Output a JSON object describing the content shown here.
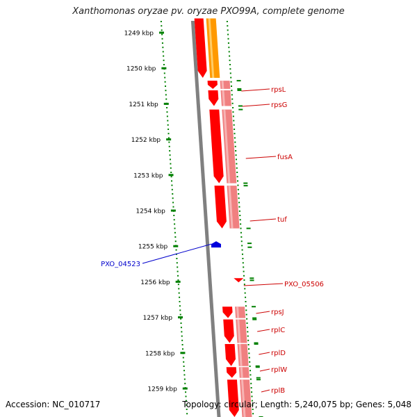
{
  "title": "Xanthomonas oryzae pv. oryzae PXO99A, complete genome",
  "footer": {
    "accession": "Accession: NC_010717",
    "summary": "Topology: circular; Length: 5,240,075 bp; Genes: 5,048"
  },
  "colors": {
    "ruler": "#008000",
    "backbone": "#808080",
    "gene_forward": "#ff0000",
    "gene_light": "#f08080",
    "gene_orange": "#ff9900",
    "gene_blue": "#0000dd",
    "label_red": "#cc0000",
    "label_blue": "#0000cc"
  },
  "ruler": {
    "unit": "kbp",
    "ticks": [
      {
        "label": "1249 kbp",
        "kbp": 1249
      },
      {
        "label": "1250 kbp",
        "kbp": 1250
      },
      {
        "label": "1251 kbp",
        "kbp": 1251
      },
      {
        "label": "1252 kbp",
        "kbp": 1252
      },
      {
        "label": "1253 kbp",
        "kbp": 1253
      },
      {
        "label": "1254 kbp",
        "kbp": 1254
      },
      {
        "label": "1255 kbp",
        "kbp": 1255
      },
      {
        "label": "1256 kbp",
        "kbp": 1256
      },
      {
        "label": "1257 kbp",
        "kbp": 1257
      },
      {
        "label": "1258 kbp",
        "kbp": 1258
      },
      {
        "label": "1259 kbp",
        "kbp": 1259
      }
    ]
  },
  "genes": [
    {
      "name": "rpsL",
      "start": 1250.35,
      "end": 1250.58,
      "strand": "+"
    },
    {
      "name": "rpsG",
      "start": 1250.62,
      "end": 1251.06,
      "strand": "+"
    },
    {
      "name": "fusA",
      "start": 1251.16,
      "end": 1253.23,
      "strand": "+"
    },
    {
      "name": "tuf",
      "start": 1253.3,
      "end": 1254.5,
      "strand": "+"
    },
    {
      "name": "PXO_04523",
      "start": 1254.92,
      "end": 1255.03,
      "strand": "-"
    },
    {
      "name": "PXO_05506",
      "start": 1255.9,
      "end": 1255.96,
      "strand": "+"
    },
    {
      "name": "rpsJ",
      "start": 1256.7,
      "end": 1257.02,
      "strand": "+"
    },
    {
      "name": "rplC",
      "start": 1257.06,
      "end": 1257.72,
      "strand": "+"
    },
    {
      "name": "rplD",
      "start": 1257.75,
      "end": 1258.37,
      "strand": "+"
    },
    {
      "name": "rplW",
      "start": 1258.4,
      "end": 1258.7,
      "strand": "+"
    },
    {
      "name": "rplB",
      "start": 1258.75,
      "end": 1259.8,
      "strand": "+"
    }
  ]
}
